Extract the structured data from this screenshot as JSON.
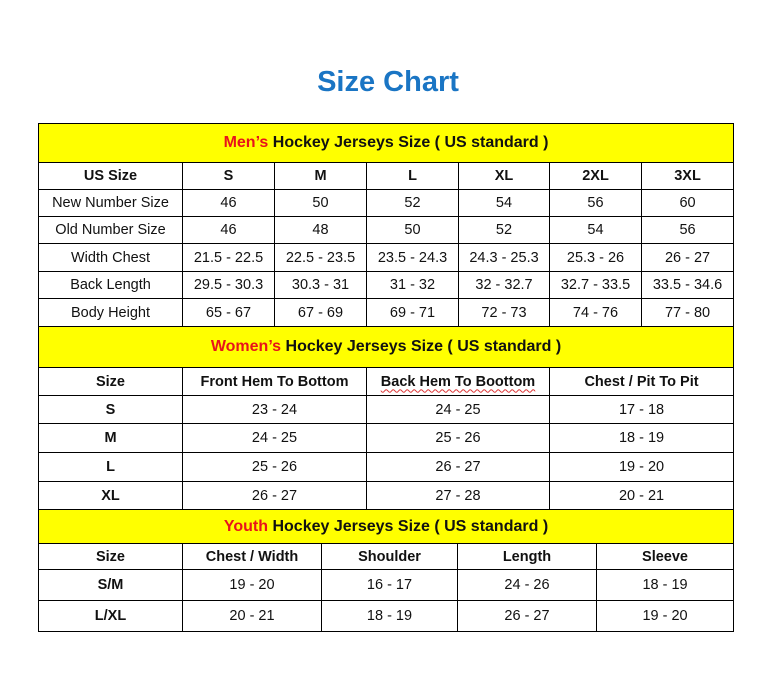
{
  "title": "Size Chart",
  "colors": {
    "title": "#1a75c4",
    "header_bg": "#ffff00",
    "highlight": "#e8141b"
  },
  "mens": {
    "heading_highlight": "Men’s",
    "heading_rest": " Hockey Jerseys Size ( US standard )",
    "columns": [
      "US Size",
      "S",
      "M",
      "L",
      "XL",
      "2XL",
      "3XL"
    ],
    "rows": [
      [
        "New Number Size",
        "46",
        "50",
        "52",
        "54",
        "56",
        "60"
      ],
      [
        "Old Number Size",
        "46",
        "48",
        "50",
        "52",
        "54",
        "56"
      ],
      [
        "Width Chest",
        "21.5 - 22.5",
        "22.5 - 23.5",
        "23.5 - 24.3",
        "24.3 - 25.3",
        "25.3 - 26",
        "26 - 27"
      ],
      [
        "Back Length",
        "29.5 - 30.3",
        "30.3 - 31",
        "31 - 32",
        "32 - 32.7",
        "32.7 - 33.5",
        "33.5 - 34.6"
      ],
      [
        "Body Height",
        "65 - 67",
        "67 - 69",
        "69 - 71",
        "72 - 73",
        "74 - 76",
        "77 - 80"
      ]
    ]
  },
  "womens": {
    "heading_highlight": "Women’s",
    "heading_rest": " Hockey Jerseys Size ( US standard )",
    "columns": [
      "Size",
      "Front Hem To Bottom",
      "Back Hem To Boottom",
      "Chest / Pit To Pit"
    ],
    "rows": [
      [
        "S",
        "23 - 24",
        "24 - 25",
        "17 - 18"
      ],
      [
        "M",
        "24 - 25",
        "25 - 26",
        "18 - 19"
      ],
      [
        "L",
        "25 - 26",
        "26 - 27",
        "19 - 20"
      ],
      [
        "XL",
        "26 - 27",
        "27 - 28",
        "20 - 21"
      ]
    ]
  },
  "youth": {
    "heading_highlight": "Youth",
    "heading_rest": " Hockey Jerseys Size ( US standard )",
    "columns": [
      "Size",
      "Chest / Width",
      "Shoulder",
      "Length",
      "Sleeve"
    ],
    "rows": [
      [
        "S/M",
        "19 - 20",
        "16 - 17",
        "24 - 26",
        "18 - 19"
      ],
      [
        "L/XL",
        "20 - 21",
        "18 - 19",
        "26 - 27",
        "19 - 20"
      ]
    ]
  }
}
